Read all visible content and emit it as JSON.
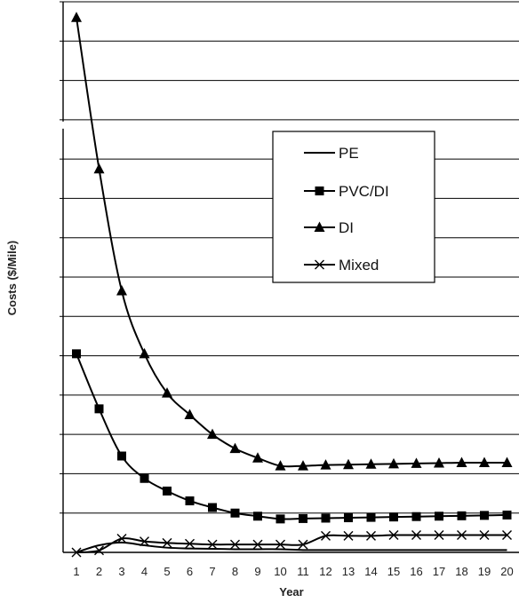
{
  "chart_data": {
    "type": "line",
    "title": "",
    "xlabel": "Year",
    "ylabel": "Costs ($/Mile)",
    "x": [
      1,
      2,
      3,
      4,
      5,
      6,
      7,
      8,
      9,
      10,
      11,
      12,
      13,
      14,
      15,
      16,
      17,
      18,
      19,
      20
    ],
    "xtick_labels": [
      "1",
      "2",
      "3",
      "4",
      "5",
      "6",
      "7",
      "8",
      "9",
      "10",
      "11",
      "12",
      "13",
      "14",
      "15",
      "16",
      "17",
      "18",
      "19",
      "20"
    ],
    "y_tick_labels": [],
    "ylim": [
      0,
      14
    ],
    "y_gridlines": [
      1,
      2,
      3,
      4,
      5,
      6,
      7,
      8,
      9,
      10,
      11,
      12,
      13,
      14
    ],
    "y_axis_break": true,
    "grid": true,
    "legend_position": "upper-right",
    "series": [
      {
        "name": "PE",
        "marker": "none",
        "values": [
          0.0,
          0.18,
          0.25,
          0.18,
          0.12,
          0.1,
          0.09,
          0.08,
          0.08,
          0.08,
          0.06,
          0.06,
          0.06,
          0.06,
          0.06,
          0.06,
          0.06,
          0.06,
          0.06,
          0.06
        ]
      },
      {
        "name": "PVC/DI",
        "marker": "square",
        "values": [
          5.05,
          3.65,
          2.45,
          1.88,
          1.56,
          1.31,
          1.14,
          1.0,
          0.92,
          0.85,
          0.86,
          0.87,
          0.88,
          0.89,
          0.9,
          0.91,
          0.92,
          0.93,
          0.94,
          0.95
        ]
      },
      {
        "name": "DI",
        "marker": "triangle",
        "values": [
          13.6,
          9.75,
          6.65,
          5.05,
          4.05,
          3.5,
          3.0,
          2.64,
          2.4,
          2.2,
          2.2,
          2.22,
          2.23,
          2.24,
          2.25,
          2.26,
          2.27,
          2.28,
          2.28,
          2.28
        ]
      },
      {
        "name": "Mixed",
        "marker": "x",
        "values": [
          0.0,
          0.05,
          0.35,
          0.28,
          0.24,
          0.22,
          0.2,
          0.2,
          0.2,
          0.2,
          0.2,
          0.42,
          0.42,
          0.42,
          0.44,
          0.44,
          0.44,
          0.44,
          0.44,
          0.44
        ]
      }
    ]
  },
  "colors": {
    "line": "#000000",
    "grid": "#000000",
    "background": "#ffffff"
  }
}
